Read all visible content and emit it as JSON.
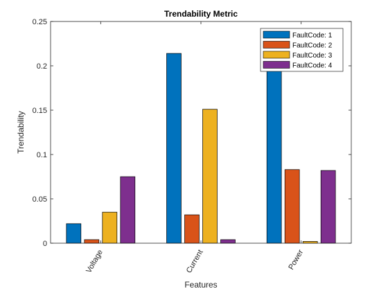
{
  "chart_data": {
    "type": "bar",
    "title": "Trendability Metric",
    "xlabel": "Features",
    "ylabel": "Trendability",
    "categories": [
      "Voltage",
      "Current",
      "Power"
    ],
    "ylim": [
      0,
      0.25
    ],
    "yticks": [
      "0",
      "0.05",
      "0.1",
      "0.15",
      "0.2",
      "0.25"
    ],
    "grid": false,
    "legend_position": "top-right",
    "series": [
      {
        "name": "FaultCode: 1",
        "color": "#0072BD",
        "values": [
          0.022,
          0.214,
          0.199
        ]
      },
      {
        "name": "FaultCode: 2",
        "color": "#D95319",
        "values": [
          0.004,
          0.032,
          0.083
        ]
      },
      {
        "name": "FaultCode: 3",
        "color": "#EDB120",
        "values": [
          0.035,
          0.151,
          0.002
        ]
      },
      {
        "name": "FaultCode: 4",
        "color": "#7E2F8E",
        "values": [
          0.075,
          0.004,
          0.082
        ]
      }
    ]
  }
}
